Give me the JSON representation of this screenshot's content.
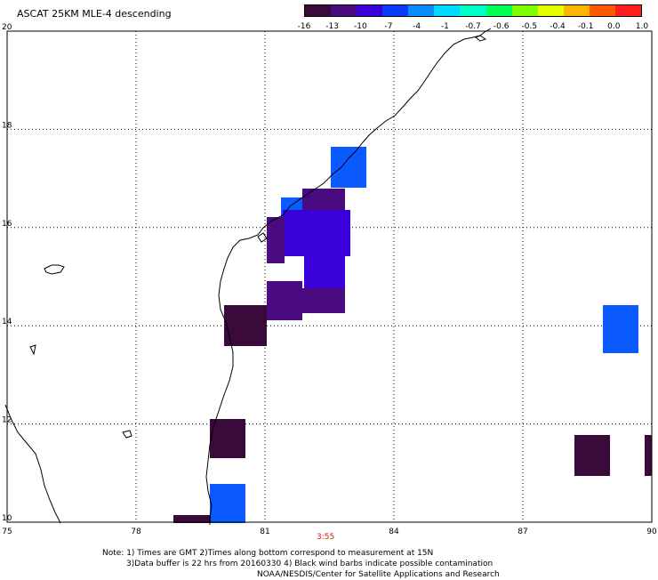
{
  "title": "ASCAT 25KM MLE-4 descending",
  "colorbar": {
    "labels": [
      "-16",
      "-13",
      "-10",
      "-7",
      "-4",
      "-1",
      "-0.7",
      "-0.6",
      "-0.5",
      "-0.4",
      "-0.1",
      "0.0",
      "1.0"
    ],
    "colors": [
      "#3a0a3a",
      "#4a0a80",
      "#3a00d8",
      "#0a3cff",
      "#0a8cff",
      "#00d8ff",
      "#00ffc8",
      "#00ff50",
      "#7dff00",
      "#e6ff00",
      "#ffb400",
      "#ff5a00",
      "#ff1e1e"
    ]
  },
  "axes": {
    "x_labels": [
      "75",
      "78",
      "81",
      "84",
      "87",
      "90"
    ],
    "y_labels": [
      "20",
      "18",
      "16",
      "14",
      "12",
      "10"
    ],
    "x_range": [
      75,
      90
    ],
    "y_range": [
      10,
      20
    ]
  },
  "time_label": "3:55",
  "notes": {
    "line1": "Note: 1) Times are GMT 2)Times along bottom correspond to measurement at 15N",
    "line2": "3)Data buffer is 22 hrs from 20160330 4) Black wind barbs indicate possible contamination",
    "line3": "NOAA/NESDIS/Center for Satellite Applications and Research"
  },
  "colors": {
    "dark": "#3a0a3a",
    "purple": "#4a0a80",
    "indigo": "#3a00d8",
    "blue": "#0a5aff"
  }
}
